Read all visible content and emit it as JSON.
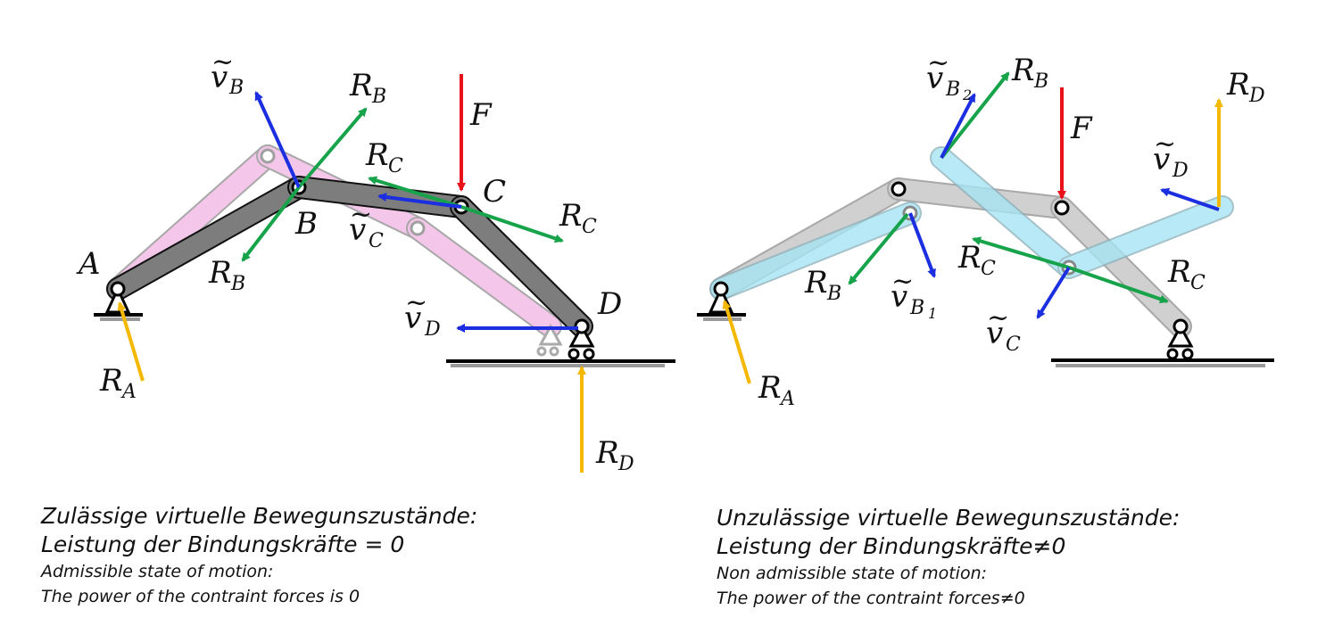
{
  "colors": {
    "force": "#e8121a",
    "reaction": "#f5b800",
    "constraint": "#16a34a",
    "velocity": "#1b2fe0",
    "link_dark": "#7d7d7d",
    "link_pink": "#f4c6ea",
    "link_gray": "#c8c8c8",
    "link_cyan": "#a6e4f4"
  },
  "left_diagram": {
    "point_labels": {
      "A": "A",
      "B": "B",
      "C": "C",
      "D": "D"
    },
    "force_label": "F",
    "reaction_labels": {
      "RA": "R",
      "RA_sub": "A",
      "RD": "R",
      "RD_sub": "D"
    },
    "constraint_labels": {
      "RB1": "R",
      "RB1_sub": "B",
      "RB2": "R",
      "RB2_sub": "B",
      "RC1": "R",
      "RC1_sub": "C",
      "RC2": "R",
      "RC2_sub": "C"
    },
    "velocity_labels": {
      "vB": "v",
      "vB_sub": "B",
      "vC": "v",
      "vC_sub": "C",
      "vD": "v",
      "vD_sub": "D"
    }
  },
  "right_diagram": {
    "force_label": "F",
    "reaction_labels": {
      "RA": "R",
      "RA_sub": "A",
      "RD": "R",
      "RD_sub": "D"
    },
    "constraint_labels": {
      "RB1": "R",
      "RB1_sub": "B",
      "RB2": "R",
      "RB2_sub": "B",
      "RC1": "R",
      "RC1_sub": "C",
      "RC2": "R",
      "RC2_sub": "C"
    },
    "velocity_labels": {
      "vB1": "v",
      "vB1_sub": "B",
      "vB1_subsub": "1",
      "vB2": "v",
      "vB2_sub": "B",
      "vB2_subsub": "2",
      "vC": "v",
      "vC_sub": "C",
      "vD": "v",
      "vD_sub": "D"
    }
  },
  "captions": {
    "left": {
      "line1": "Zulässige virtuelle Bewegunszustände:",
      "line2": "Leistung der Bindungskräfte = 0",
      "line3": "Admissible state of motion:",
      "line4": "The power of the contraint forces is 0"
    },
    "right": {
      "line1": "Unzulässige virtuelle Bewegunszustände:",
      "line2": "Leistung der Bindungskräfte≠0",
      "line3": "Non admissible state of motion:",
      "line4": "The power of the contraint forces≠0"
    }
  }
}
